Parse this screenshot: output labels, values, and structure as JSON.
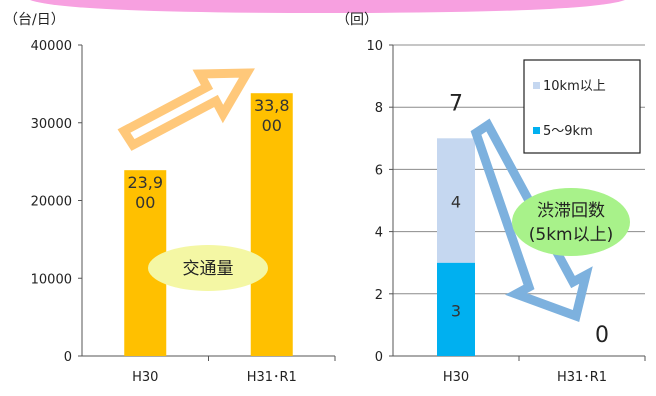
{
  "colors": {
    "traffic_bar": "#FFC000",
    "traffic_arrow": "#FFC87A",
    "congestion_arrow": "#7DB1DE",
    "series_10km": "#C5D7F0",
    "series_5_9km": "#00B0F0",
    "traffic_callout": "#F4F7A4",
    "congestion_callout": "#A8F28A",
    "top_bar": "#F7A0E0"
  },
  "chart_data": [
    {
      "type": "bar",
      "unit_label": "（台/日）",
      "categories": [
        "H30",
        "H31･R1"
      ],
      "values": [
        23900,
        33800
      ],
      "data_labels": [
        [
          "23,9",
          "00"
        ],
        [
          "33,8",
          "00"
        ]
      ],
      "ylim": [
        0,
        40000
      ],
      "yticks": [
        "0",
        "10000",
        "20000",
        "30000",
        "40000"
      ],
      "grid": false,
      "annotation": "交通量"
    },
    {
      "type": "bar",
      "stacked": true,
      "unit_label": "（回）",
      "categories": [
        "H30",
        "H31･R1"
      ],
      "series": [
        {
          "name": "5～9km",
          "values": [
            3,
            0
          ]
        },
        {
          "name": "10km以上",
          "values": [
            4,
            0
          ]
        }
      ],
      "segment_labels": [
        [
          "3",
          ""
        ],
        [
          "4",
          ""
        ]
      ],
      "totals": [
        "7",
        "0"
      ],
      "ylim": [
        0,
        10
      ],
      "yticks": [
        "0",
        "2",
        "4",
        "6",
        "8",
        "10"
      ],
      "grid": true,
      "legend_position": "top-right",
      "annotation": [
        "渋滞回数",
        "(5km以上)"
      ]
    }
  ]
}
